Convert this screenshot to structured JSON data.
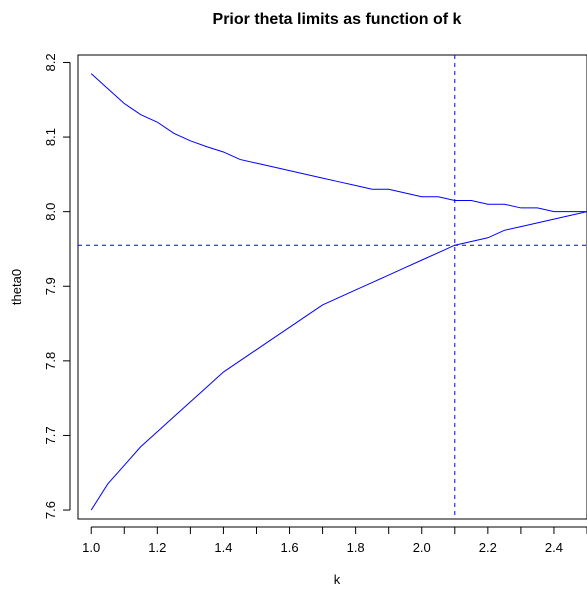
{
  "chart_data": {
    "type": "line",
    "title": "Prior theta limits as function of k",
    "xlabel": "k",
    "ylabel": "theta0",
    "xlim": [
      0.96,
      2.5
    ],
    "ylim": [
      7.588,
      8.21
    ],
    "x_ticks": [
      1.0,
      1.2,
      1.4,
      1.6,
      1.8,
      2.0,
      2.2,
      2.4
    ],
    "x_tick_labels": [
      "1.0",
      "1.2",
      "1.4",
      "1.6",
      "1.8",
      "2.0",
      "2.2",
      "2.4"
    ],
    "y_ticks": [
      7.6,
      7.7,
      7.8,
      7.9,
      8.0,
      8.1,
      8.2
    ],
    "y_tick_labels": [
      "7.6",
      "7.7",
      "7.8",
      "7.9",
      "8.0",
      "8.1",
      "8.2"
    ],
    "x_minor_ticks": [
      1.1,
      1.3,
      1.5,
      1.7,
      1.9,
      2.1,
      2.3,
      2.5
    ],
    "color": "#0000ff",
    "series": [
      {
        "x": [
          1.0,
          1.05,
          1.1,
          1.15,
          1.2,
          1.25,
          1.3,
          1.35,
          1.4,
          1.45,
          1.5,
          1.55,
          1.6,
          1.65,
          1.7,
          1.75,
          1.8,
          1.85,
          1.9,
          1.95,
          2.0,
          2.05,
          2.1,
          2.15,
          2.2,
          2.25,
          2.3,
          2.35,
          2.4,
          2.45,
          2.5
        ],
        "values": [
          8.185,
          8.165,
          8.145,
          8.13,
          8.12,
          8.105,
          8.095,
          8.087,
          8.08,
          8.07,
          8.065,
          8.06,
          8.055,
          8.05,
          8.045,
          8.04,
          8.035,
          8.03,
          8.03,
          8.025,
          8.02,
          8.02,
          8.015,
          8.015,
          8.01,
          8.01,
          8.005,
          8.005,
          8.0,
          8.0,
          8.0
        ]
      },
      {
        "x": [
          1.0,
          1.05,
          1.1,
          1.15,
          1.2,
          1.25,
          1.3,
          1.35,
          1.4,
          1.45,
          1.5,
          1.55,
          1.6,
          1.65,
          1.7,
          1.75,
          1.8,
          1.85,
          1.9,
          1.95,
          2.0,
          2.05,
          2.1,
          2.15,
          2.2,
          2.25,
          2.3,
          2.35,
          2.4,
          2.45,
          2.5
        ],
        "values": [
          7.6,
          7.635,
          7.66,
          7.685,
          7.705,
          7.725,
          7.745,
          7.765,
          7.785,
          7.8,
          7.815,
          7.83,
          7.845,
          7.86,
          7.875,
          7.885,
          7.895,
          7.905,
          7.915,
          7.925,
          7.935,
          7.945,
          7.955,
          7.96,
          7.965,
          7.975,
          7.98,
          7.985,
          7.99,
          7.995,
          8.0
        ]
      }
    ],
    "reference_lines": [
      {
        "orientation": "vertical",
        "value": 2.1,
        "style": "dashed"
      },
      {
        "orientation": "horizontal",
        "value": 7.955,
        "style": "dashed"
      }
    ],
    "grid": false,
    "legend": "none"
  }
}
